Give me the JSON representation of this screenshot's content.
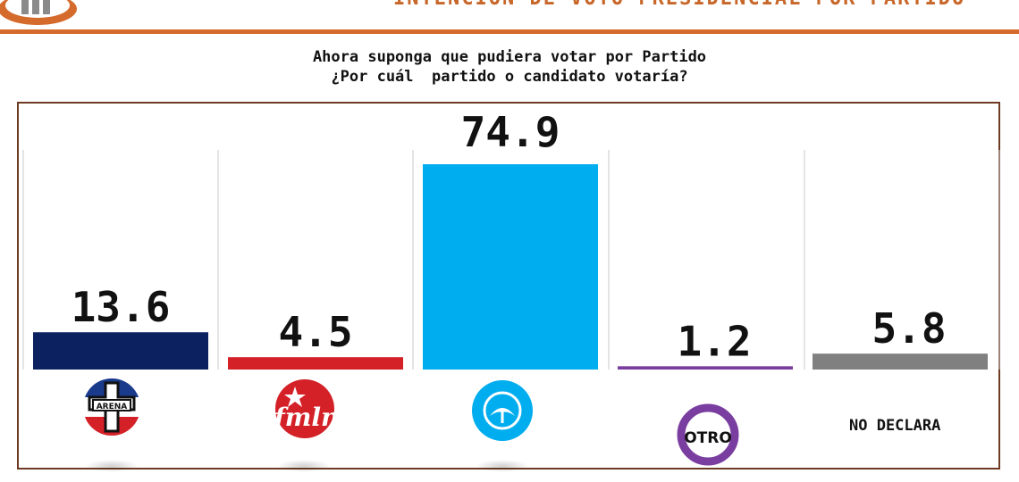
{
  "header": {
    "title": "INTENCIÓN DE VOTO PRESIDENCIAL POR PARTIDO"
  },
  "chart_data": {
    "type": "bar",
    "title_lines": [
      "Ahora suponga que pudiera votar por Partido",
      "¿Por cuál  partido o candidato votaría?"
    ],
    "categories": [
      "ARENA",
      "FMLN",
      "NUEVAS IDEAS",
      "OTRO",
      "NO DECLARA"
    ],
    "values": [
      13.6,
      4.5,
      74.9,
      1.2,
      5.8
    ],
    "value_labels": [
      "13.6",
      "4.5",
      "74.9",
      "1.2",
      "5.8"
    ],
    "colors": [
      "#0c2260",
      "#d42027",
      "#00adef",
      "#7a3ea0",
      "#808080"
    ],
    "ylim": [
      0,
      80
    ],
    "grid": false,
    "legend": "none",
    "xlabel": "",
    "ylabel": ""
  },
  "logos": {
    "arena": {
      "text": "ARENA",
      "icon": "arena-logo-icon"
    },
    "fmln": {
      "text": "fmln",
      "icon": "fmln-logo-icon"
    },
    "nuevas_ideas": {
      "icon": "nuevas-ideas-logo-icon"
    },
    "otro": {
      "text": "OTRO",
      "icon": "otro-circle-icon"
    },
    "no_declara": {
      "text": "NO DECLARA"
    }
  }
}
